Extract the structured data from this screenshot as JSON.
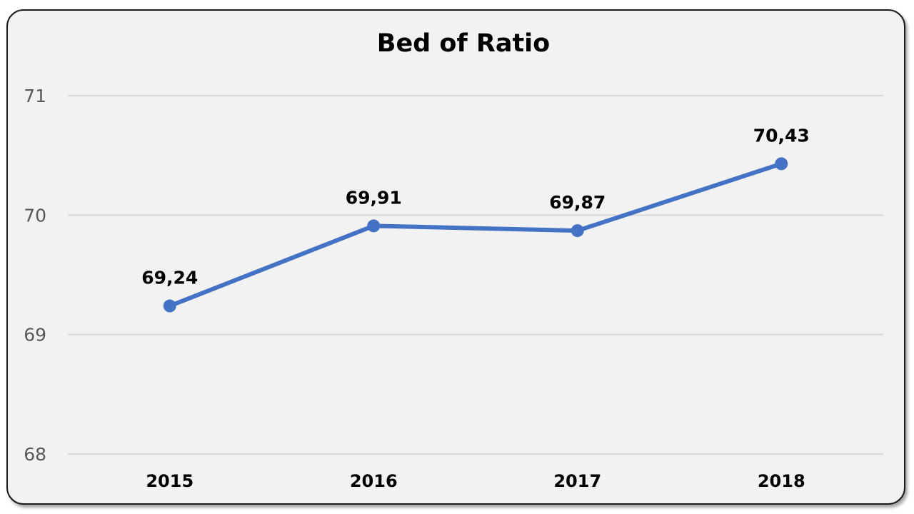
{
  "chart_data": {
    "type": "line",
    "title": "Bed of Ratio",
    "xlabel": "",
    "ylabel": "",
    "categories": [
      "2015",
      "2016",
      "2017",
      "2018"
    ],
    "series": [
      {
        "values": [
          69.24,
          69.91,
          69.87,
          70.43
        ],
        "labels": [
          "69,24",
          "69,91",
          "69,87",
          "70,43"
        ],
        "color": "#4472c4"
      }
    ],
    "ylim": [
      68,
      71
    ],
    "yticks": [
      "68",
      "69",
      "70",
      "71"
    ],
    "grid": true,
    "legend": "none"
  }
}
